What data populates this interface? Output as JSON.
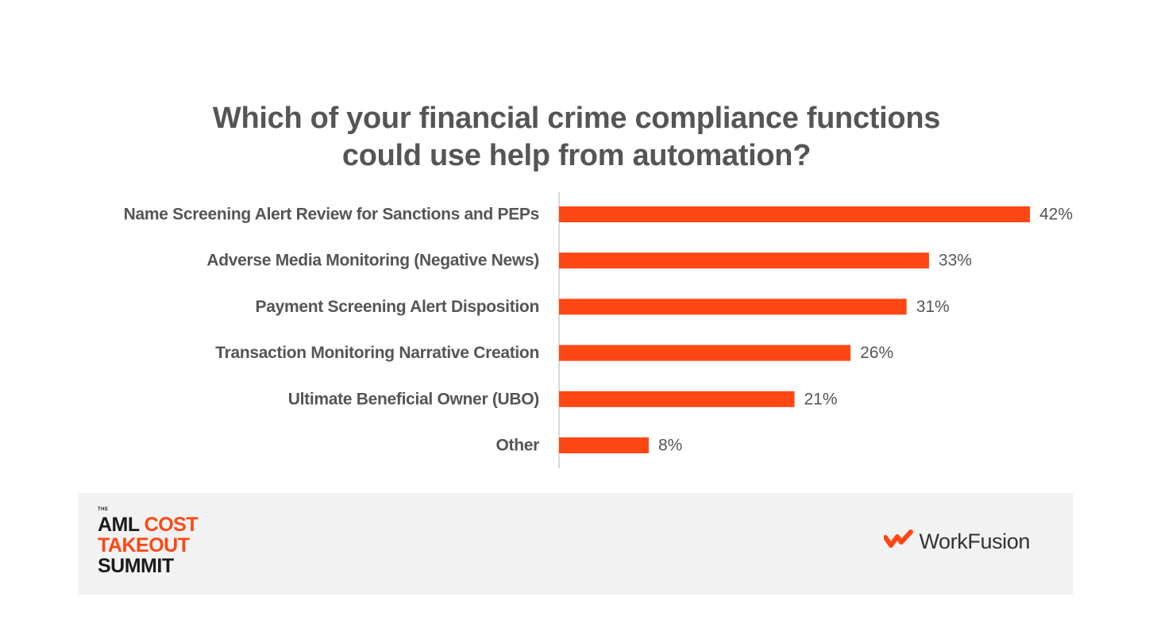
{
  "title_lines": [
    "Which of your financial crime compliance functions",
    "could use help from automation?"
  ],
  "colors": {
    "bar": "#ff4713",
    "text": "#555555",
    "axis": "#d9d9d9",
    "footer_bg": "#f2f2f2"
  },
  "chart_data": {
    "type": "bar",
    "orientation": "horizontal",
    "title": "Which of your financial crime compliance functions could use help from automation?",
    "categories": [
      "Name Screening Alert Review for Sanctions and PEPs",
      "Adverse Media Monitoring (Negative News)",
      "Payment Screening Alert Disposition",
      "Transaction Monitoring Narrative Creation",
      "Ultimate Beneficial Owner (UBO)",
      "Other"
    ],
    "values": [
      42,
      33,
      31,
      26,
      21,
      8
    ],
    "data_labels": [
      "42%",
      "33%",
      "31%",
      "26%",
      "21%",
      "8%"
    ],
    "unit": "%",
    "xlim": [
      0,
      42
    ],
    "grid": false,
    "legend": "none"
  },
  "footer": {
    "event_logo": {
      "the": "THE",
      "line1a": "AML ",
      "line1b": "COST",
      "line2": "TAKEOUT",
      "line3": "SUMMIT"
    },
    "brand": {
      "name": "WorkFusion",
      "icon": "workfusion-logo-icon"
    }
  }
}
